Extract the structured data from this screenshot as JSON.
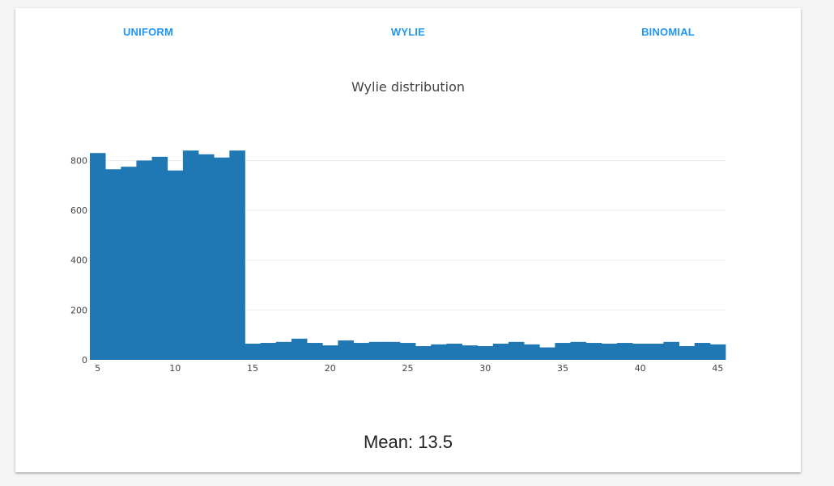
{
  "tabs": [
    {
      "label": "UNIFORM"
    },
    {
      "label": "WYLIE"
    },
    {
      "label": "BINOMIAL"
    }
  ],
  "mean": {
    "text": "Mean: 13.5"
  },
  "colors": {
    "accent": "#2196f3",
    "bar": "#1f77b4",
    "grid": "#eeeeee"
  },
  "chart_data": {
    "type": "bar",
    "title": "Wylie distribution",
    "xlabel": "",
    "ylabel": "",
    "bin_width": 1,
    "x": [
      5,
      6,
      7,
      8,
      9,
      10,
      11,
      12,
      13,
      14,
      15,
      16,
      17,
      18,
      19,
      20,
      21,
      22,
      23,
      24,
      25,
      26,
      27,
      28,
      29,
      30,
      31,
      32,
      33,
      34,
      35,
      36,
      37,
      38,
      39,
      40,
      41,
      42,
      43,
      44,
      45
    ],
    "values": [
      830,
      765,
      775,
      800,
      815,
      760,
      840,
      825,
      812,
      840,
      65,
      68,
      72,
      85,
      68,
      58,
      78,
      68,
      72,
      72,
      68,
      55,
      62,
      65,
      58,
      55,
      65,
      72,
      62,
      50,
      68,
      72,
      68,
      65,
      68,
      65,
      65,
      72,
      55,
      68,
      62
    ],
    "xlim": [
      4.5,
      45.5
    ],
    "ylim": [
      0,
      860
    ],
    "xticks": [
      5,
      10,
      15,
      20,
      25,
      30,
      35,
      40,
      45
    ],
    "yticks": [
      0,
      200,
      400,
      600,
      800
    ],
    "grid": true
  }
}
